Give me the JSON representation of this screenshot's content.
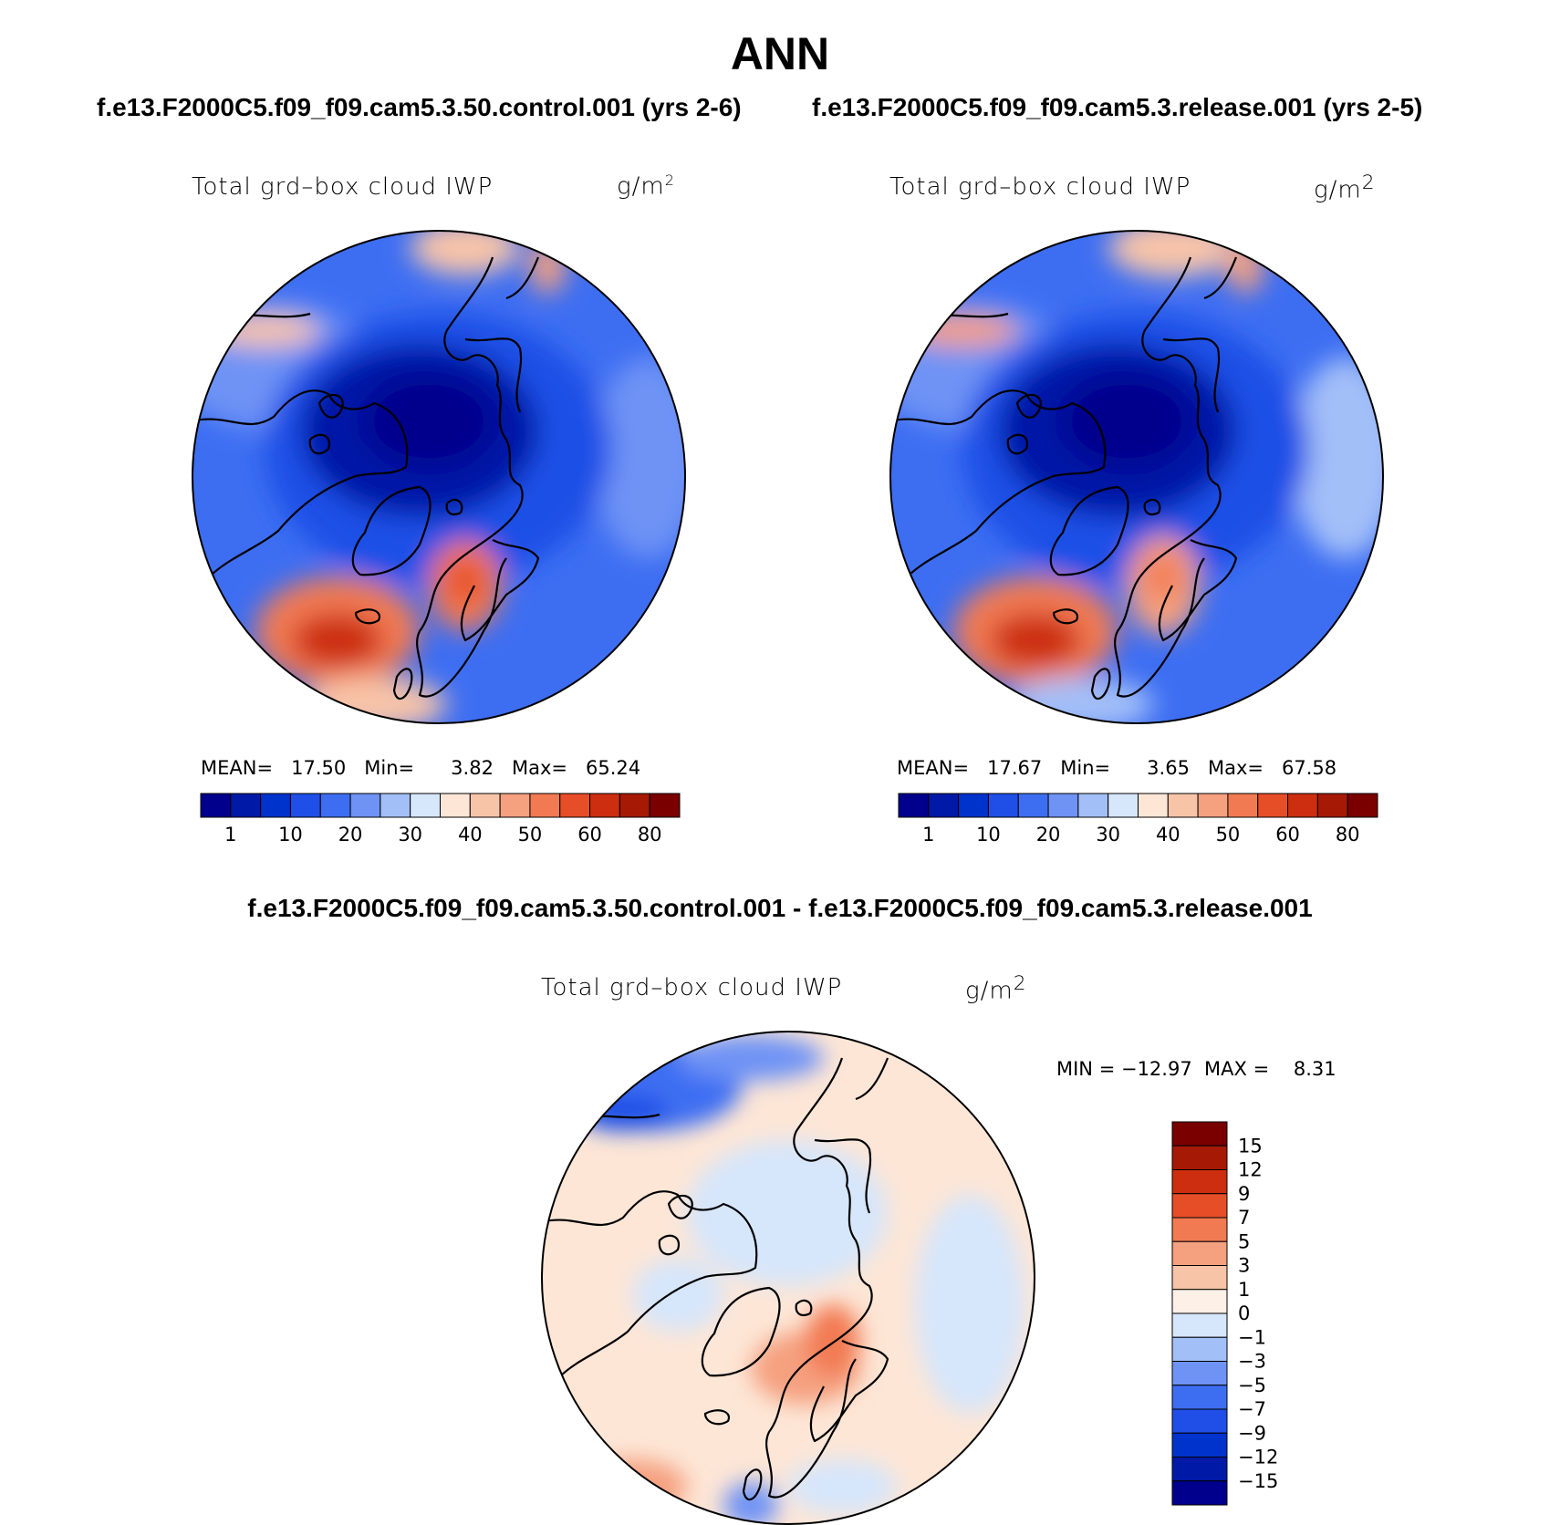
{
  "title": "ANN",
  "case_titles": {
    "left": "f.e13.F2000C5.f09_f09.cam5.3.50.control.001 (yrs 2-6)",
    "right": "f.e13.F2000C5.f09_f09.cam5.3.release.001 (yrs 2-5)",
    "diff": "f.e13.F2000C5.f09_f09.cam5.3.50.control.001 - f.e13.F2000C5.f09_f09.cam5.3.release.001"
  },
  "panels": [
    {
      "label": "Total grd–box cloud IWP",
      "units": "g/m",
      "units_exp": "2",
      "stats": {
        "mean_label": "MEAN=",
        "mean": "17.50",
        "min_label": "Min=",
        "min": "3.82",
        "max_label": "Max=",
        "max": "65.24"
      }
    },
    {
      "label": "Total grd–box cloud IWP",
      "units": "g/m",
      "units_exp": "2",
      "stats": {
        "mean_label": "MEAN=",
        "mean": "17.67",
        "min_label": "Min=",
        "min": "3.65",
        "max_label": "Max=",
        "max": "67.58"
      }
    },
    {
      "label": "Total grd–box cloud IWP",
      "units": "g/m",
      "units_exp": "2",
      "stats": {
        "range_text": "MIN = −12.97  MAX =    8.31"
      }
    }
  ],
  "colorbar_field": {
    "colors": [
      "#00008c",
      "#0019a6",
      "#0033cc",
      "#1f4fe6",
      "#3d6ef2",
      "#6e93f5",
      "#a3bff8",
      "#d6e6fb",
      "#fde6d6",
      "#f8c4a8",
      "#f5a07f",
      "#f27a52",
      "#e64e28",
      "#cc2e0f",
      "#a61a05",
      "#7a0000"
    ],
    "ticks": [
      "1",
      "10",
      "20",
      "30",
      "40",
      "50",
      "60",
      "80"
    ]
  },
  "colorbar_diff": {
    "colors": [
      "#00008c",
      "#0019a6",
      "#0033cc",
      "#1f4fe6",
      "#3d6ef2",
      "#6e93f5",
      "#a3bff8",
      "#d6e6fb",
      "#fdf0e6",
      "#f8c4a8",
      "#f5a07f",
      "#f27a52",
      "#e64e28",
      "#cc2e0f",
      "#a61a05",
      "#7a0000"
    ],
    "ticks": [
      "15",
      "12",
      "9",
      "7",
      "5",
      "3",
      "1",
      "0",
      "−1",
      "−3",
      "−5",
      "−7",
      "−9",
      "−12",
      "−15"
    ]
  },
  "map_colors": {
    "ocean_field": "#3d6ef2",
    "arctic_core": "#0019a6",
    "arctic_mid": "#1f4fe6",
    "warm_peak": "#e64e28",
    "warm_mid": "#f5a07f",
    "diff_base": "#fde6d6",
    "diff_cool": "#d6e6fb",
    "diff_blue": "#3d6ef2"
  }
}
